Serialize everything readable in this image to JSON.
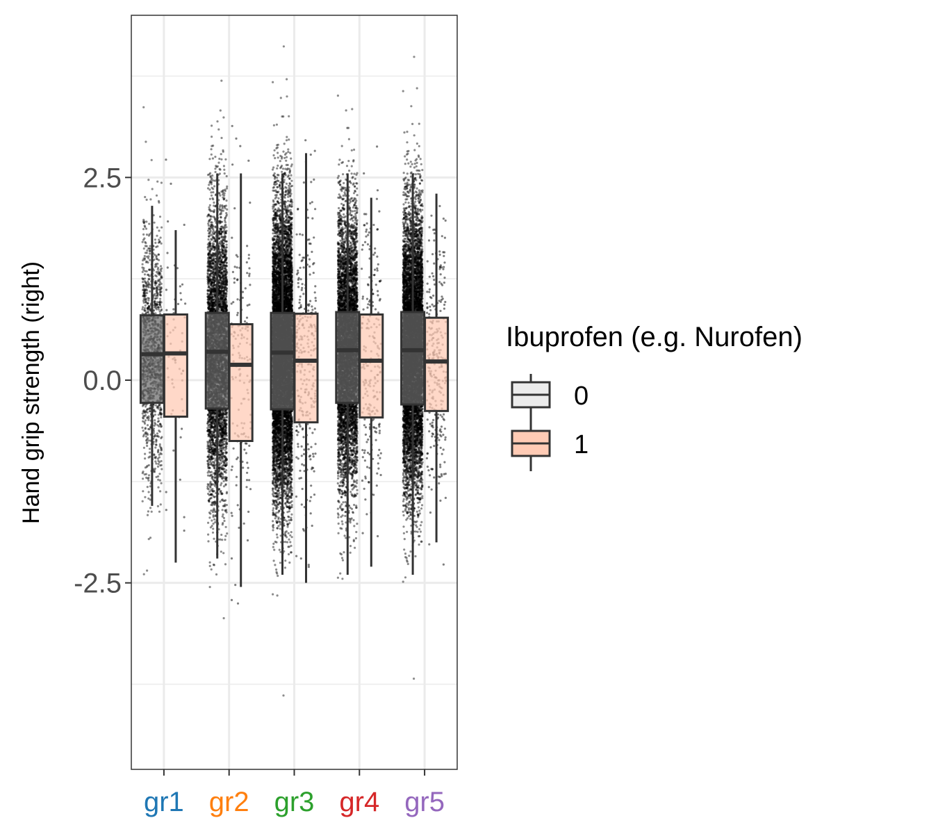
{
  "chart_data": {
    "type": "boxplot",
    "ylabel": "Hand grip strength (right)",
    "ylim": [
      -4.8,
      4.5
    ],
    "y_ticks": [
      -2.5,
      0.0,
      2.5
    ],
    "y_tick_labels": [
      "-2.5",
      "0.0",
      "2.5"
    ],
    "grid": true,
    "categories": [
      "gr1",
      "gr2",
      "gr3",
      "gr4",
      "gr5"
    ],
    "category_colors": [
      "#1f77b4",
      "#ff7f0e",
      "#2ca02c",
      "#d62728",
      "#9467bd"
    ],
    "legend": {
      "title": "Ibuprofen (e.g. Nurofen)",
      "position": "right",
      "entries": [
        {
          "label": "0",
          "fill": "#6b6b6b",
          "key_fill": "#ebebeb"
        },
        {
          "label": "1",
          "fill": "#ffcbb5",
          "key_fill": "#ffcbb5"
        }
      ]
    },
    "series": [
      {
        "name": "0",
        "boxes": [
          {
            "low": -1.55,
            "q1": -0.28,
            "median": 0.32,
            "q3": 0.8,
            "high": 2.15,
            "n_points": 1200
          },
          {
            "low": -2.2,
            "q1": -0.35,
            "median": 0.35,
            "q3": 0.83,
            "high": 2.55,
            "n_points": 4500
          },
          {
            "low": -2.4,
            "q1": -0.36,
            "median": 0.34,
            "q3": 0.83,
            "high": 2.55,
            "n_points": 9000
          },
          {
            "low": -2.4,
            "q1": -0.28,
            "median": 0.37,
            "q3": 0.84,
            "high": 2.55,
            "n_points": 6000
          },
          {
            "low": -2.4,
            "q1": -0.3,
            "median": 0.37,
            "q3": 0.84,
            "high": 2.55,
            "n_points": 8000
          }
        ]
      },
      {
        "name": "1",
        "boxes": [
          {
            "low": -2.25,
            "q1": -0.45,
            "median": 0.33,
            "q3": 0.81,
            "high": 1.85,
            "n_points": 60
          },
          {
            "low": -2.55,
            "q1": -0.75,
            "median": 0.19,
            "q3": 0.69,
            "high": 2.55,
            "n_points": 160
          },
          {
            "low": -2.5,
            "q1": -0.52,
            "median": 0.24,
            "q3": 0.82,
            "high": 2.8,
            "n_points": 300
          },
          {
            "low": -2.3,
            "q1": -0.46,
            "median": 0.24,
            "q3": 0.81,
            "high": 2.25,
            "n_points": 230
          },
          {
            "low": -2.0,
            "q1": -0.38,
            "median": 0.23,
            "q3": 0.77,
            "high": 2.3,
            "n_points": 280
          }
        ]
      }
    ]
  }
}
